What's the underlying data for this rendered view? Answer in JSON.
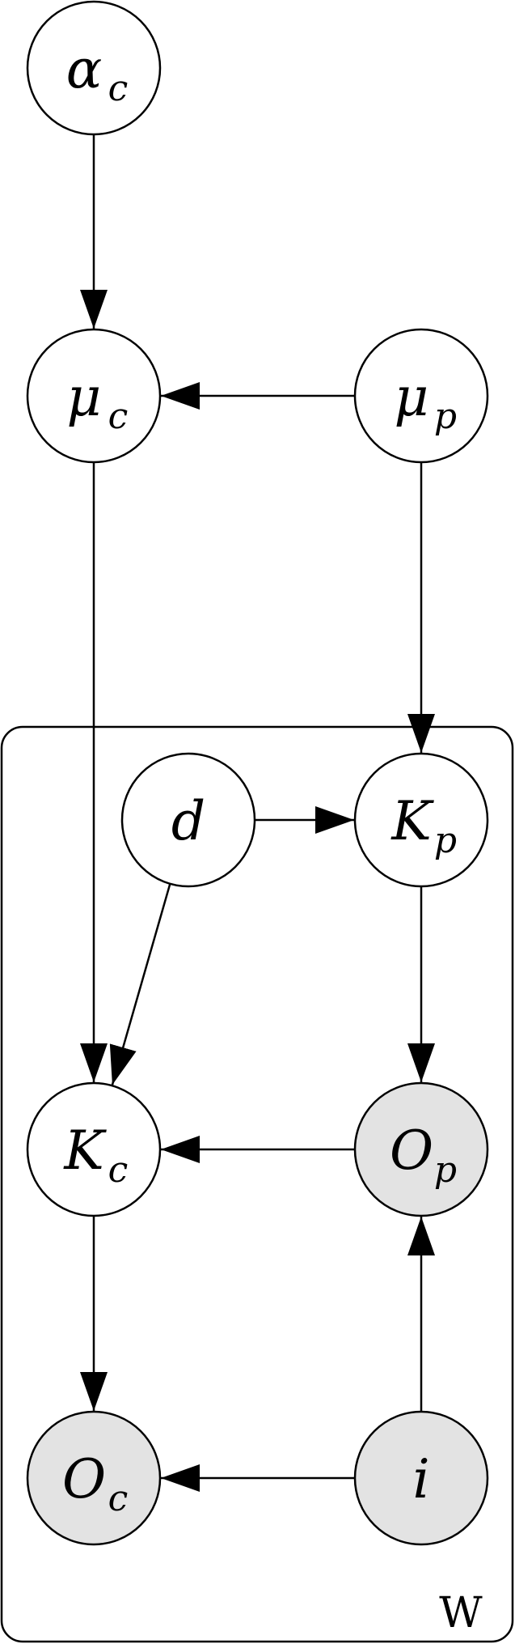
{
  "diagram": {
    "type": "graphical-model",
    "plate": {
      "label": "W"
    },
    "colors": {
      "stroke": "#000000",
      "node_fill": "#ffffff",
      "observed_fill": "#e3e3e3"
    },
    "nodes": {
      "alpha_c": {
        "main": "α",
        "sub": "c",
        "observed": false
      },
      "mu_c": {
        "main": "μ",
        "sub": "c",
        "observed": false
      },
      "mu_p": {
        "main": "μ",
        "sub": "p",
        "observed": false
      },
      "d": {
        "main": "d",
        "sub": "",
        "observed": false
      },
      "K_p": {
        "main": "K",
        "sub": "p",
        "observed": false
      },
      "K_c": {
        "main": "K",
        "sub": "c",
        "observed": false
      },
      "O_p": {
        "main": "O",
        "sub": "p",
        "observed": true
      },
      "O_c": {
        "main": "O",
        "sub": "c",
        "observed": true
      },
      "i": {
        "main": "i",
        "sub": "",
        "observed": true
      }
    },
    "edges": [
      {
        "from": "alpha_c",
        "to": "mu_c"
      },
      {
        "from": "mu_p",
        "to": "mu_c"
      },
      {
        "from": "mu_p",
        "to": "K_p"
      },
      {
        "from": "mu_c",
        "to": "K_c"
      },
      {
        "from": "d",
        "to": "K_p"
      },
      {
        "from": "d",
        "to": "K_c"
      },
      {
        "from": "K_p",
        "to": "O_p"
      },
      {
        "from": "O_p",
        "to": "K_c"
      },
      {
        "from": "K_c",
        "to": "O_c"
      },
      {
        "from": "i",
        "to": "O_p"
      },
      {
        "from": "i",
        "to": "O_c"
      }
    ]
  }
}
